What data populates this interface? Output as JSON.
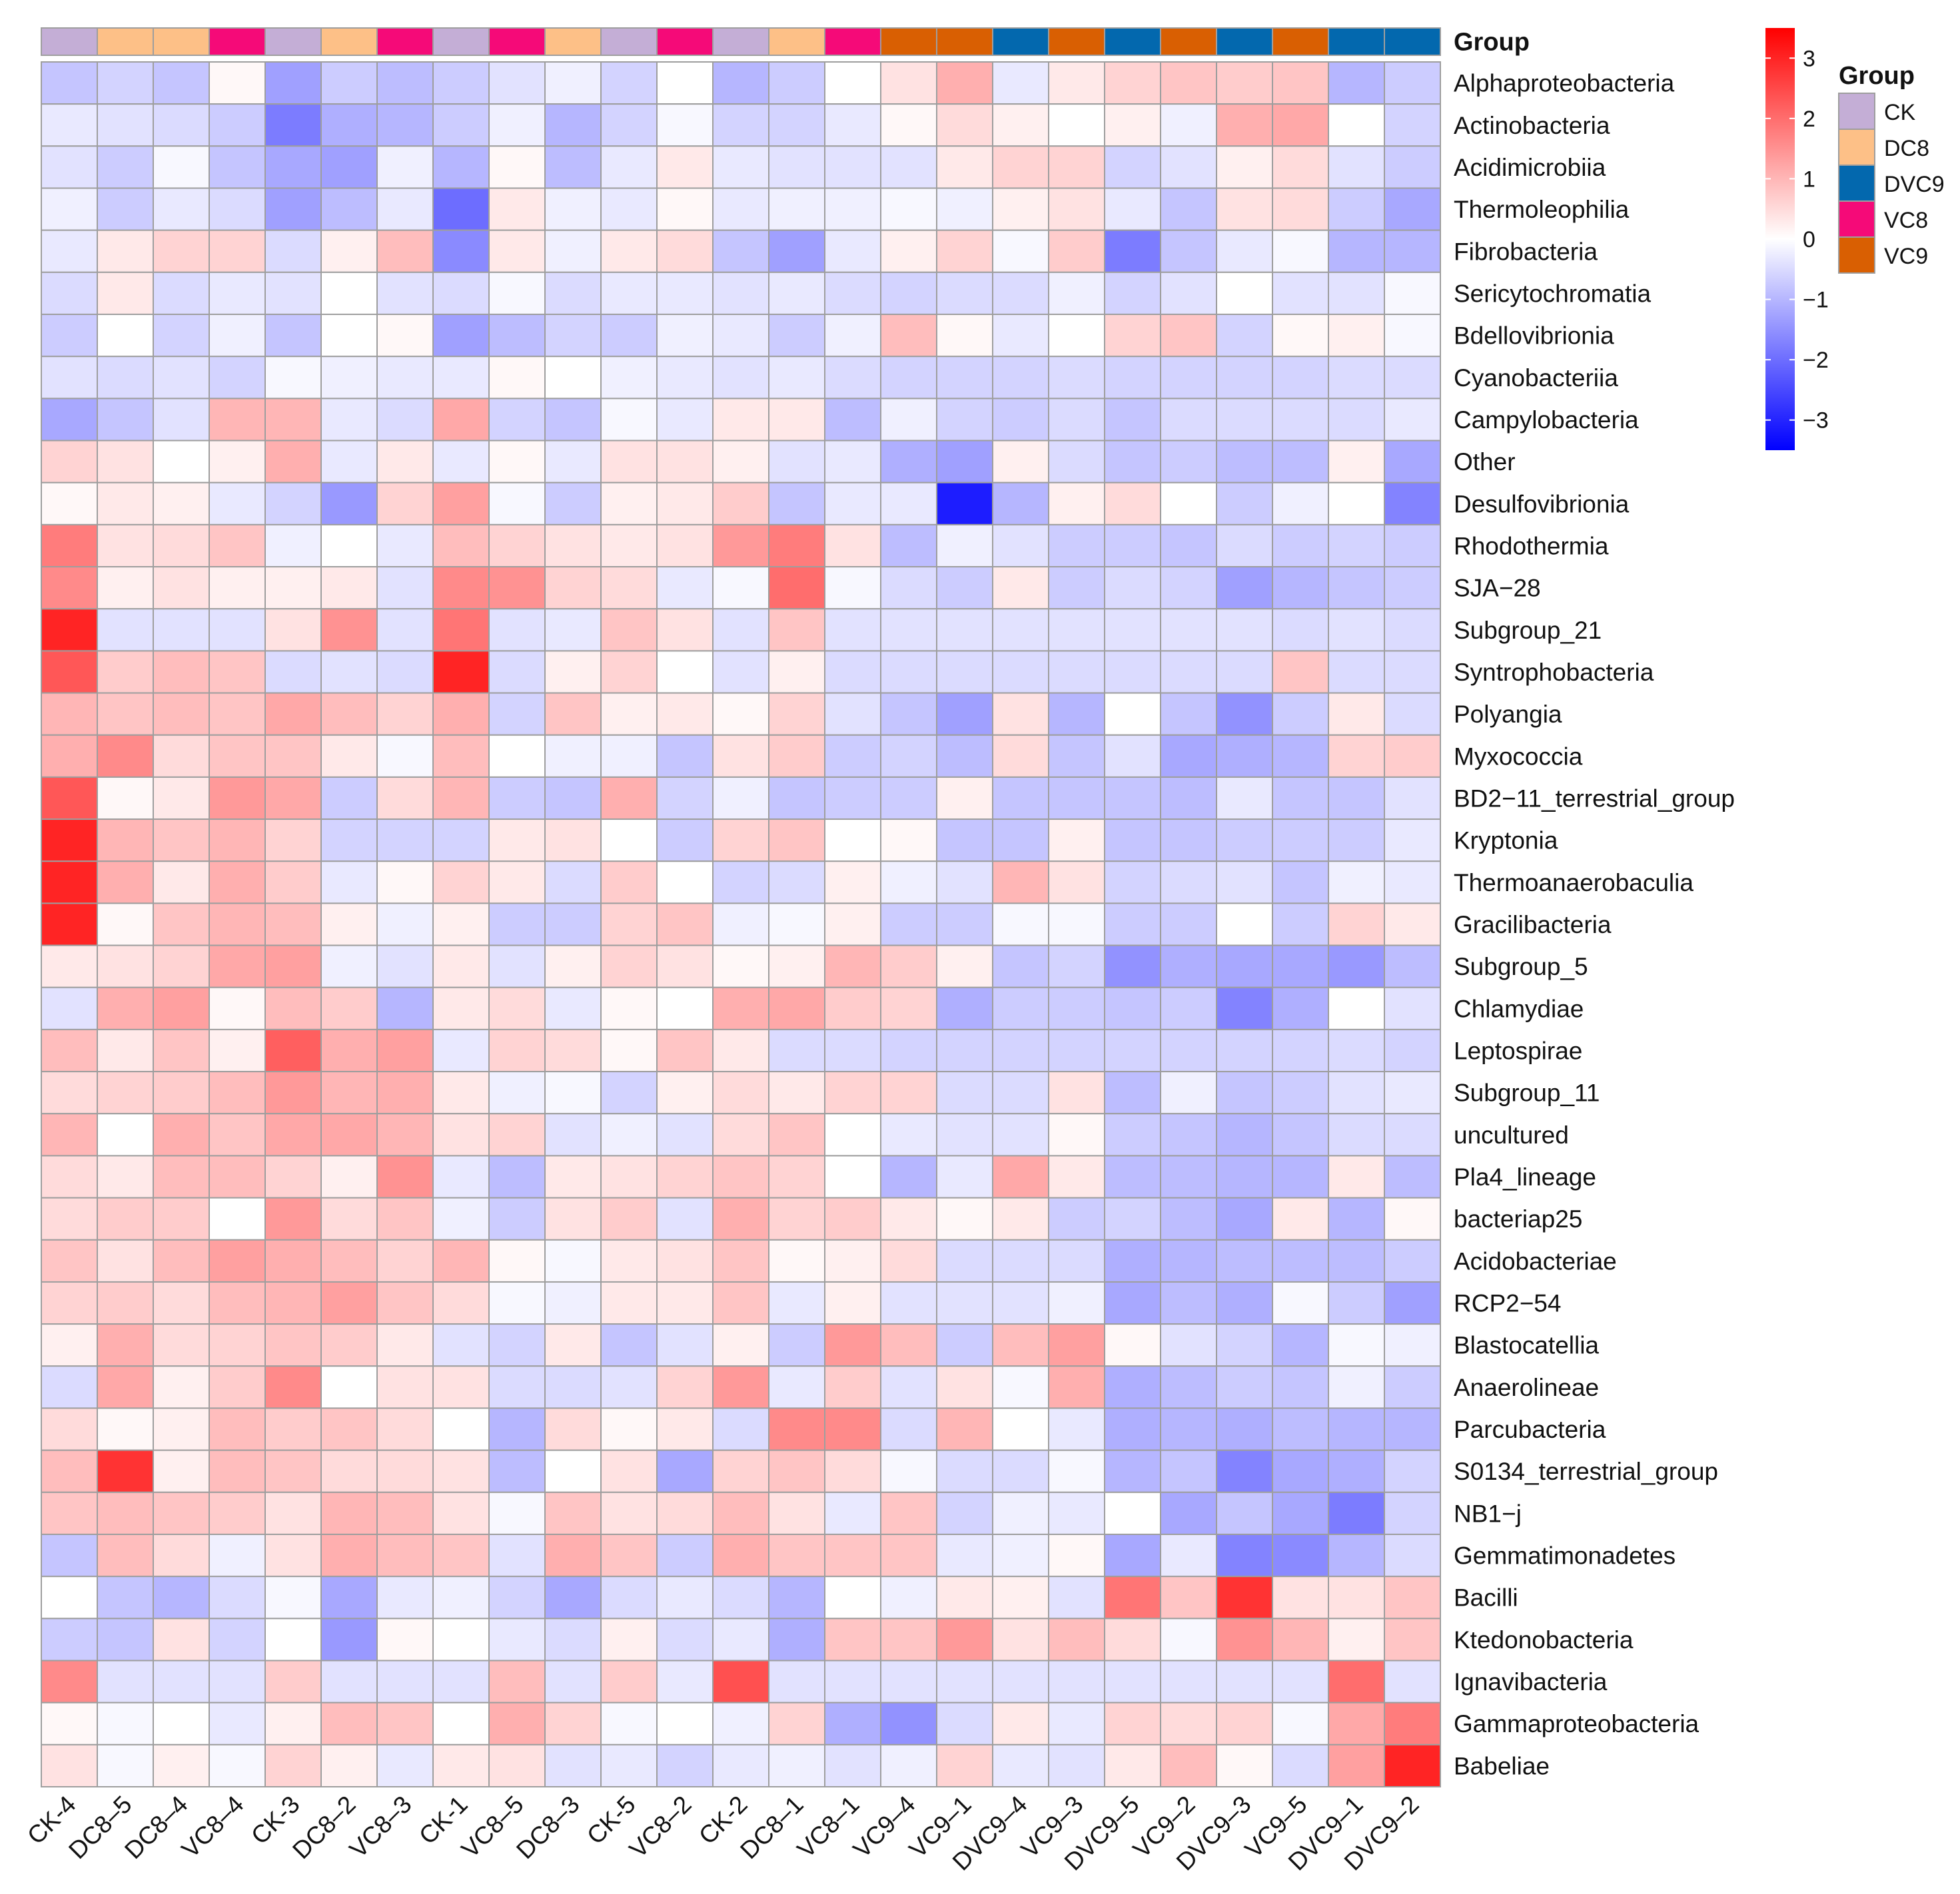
{
  "chart_data": {
    "type": "heatmap",
    "title": "",
    "annotation_title": "Group",
    "columns": [
      "CK-4",
      "DC8-5",
      "DC8-4",
      "VC8-4",
      "CK-3",
      "DC8-2",
      "VC8-3",
      "CK-1",
      "VC8-5",
      "DC8-3",
      "CK-5",
      "VC8-2",
      "CK-2",
      "DC8-1",
      "VC8-1",
      "VC9-4",
      "VC9-1",
      "DVC9-4",
      "VC9-3",
      "DVC9-5",
      "VC9-2",
      "DVC9-3",
      "VC9-5",
      "DVC9-1",
      "DVC9-2"
    ],
    "column_labels": [
      "CK-4",
      "DC8–5",
      "DC8–4",
      "VC8–4",
      "CK-3",
      "DC8–2",
      "VC8–3",
      "CK-1",
      "VC8–5",
      "DC8–3",
      "CK-5",
      "VC8–2",
      "CK-2",
      "DC8–1",
      "VC8–1",
      "VC9–4",
      "VC9–1",
      "DVC9–4",
      "VC9–3",
      "DVC9–5",
      "VC9–2",
      "DVC9–3",
      "VC9–5",
      "DVC9–1",
      "DVC9–2"
    ],
    "column_groups": [
      "CK",
      "DC8",
      "DC8",
      "VC8",
      "CK",
      "DC8",
      "VC8",
      "CK",
      "VC8",
      "DC8",
      "CK",
      "VC8",
      "CK",
      "DC8",
      "VC8",
      "VC9",
      "VC9",
      "DVC9",
      "VC9",
      "DVC9",
      "VC9",
      "DVC9",
      "VC9",
      "DVC9",
      "DVC9"
    ],
    "rows": [
      "Alphaproteobacteria",
      "Actinobacteria",
      "Acidimicrobiia",
      "Thermoleophilia",
      "Fibrobacteria",
      "Sericytochromatia",
      "Bdellovibrionia",
      "Cyanobacteriia",
      "Campylobacteria",
      "Other",
      "Desulfovibrionia",
      "Rhodothermia",
      "SJA−28",
      "Subgroup_21",
      "Syntrophobacteria",
      "Polyangia",
      "Myxococcia",
      "BD2−11_terrestrial_group",
      "Kryptonia",
      "Thermoanaerobaculia",
      "Gracilibacteria",
      "Subgroup_5",
      "Chlamydiae",
      "Leptospirae",
      "Subgroup_11",
      "uncultured",
      "Pla4_lineage",
      "bacteriap25",
      "Acidobacteriae",
      "RCP2−54",
      "Blastocatellia",
      "Anaerolineae",
      "Parcubacteria",
      "S0134_terrestrial_group",
      "NB1−j",
      "Gemmatimonadetes",
      "Bacilli",
      "Ktedonobacteria",
      "Ignavibacteria",
      "Gammaproteobacteria",
      "Babeliae"
    ],
    "values": [
      [
        -0.8,
        -0.6,
        -0.8,
        0.1,
        -1.3,
        -0.7,
        -0.9,
        -0.7,
        -0.4,
        -0.2,
        -0.6,
        0.0,
        -1.0,
        -0.7,
        0.0,
        0.4,
        1.1,
        -0.3,
        0.3,
        0.6,
        0.8,
        0.7,
        0.8,
        -1.0,
        -0.7
      ],
      [
        -0.3,
        -0.4,
        -0.5,
        -0.7,
        -1.8,
        -1.1,
        -1.0,
        -0.7,
        -0.2,
        -1.0,
        -0.6,
        -0.1,
        -0.6,
        -0.6,
        -0.3,
        0.1,
        0.5,
        0.2,
        0.0,
        0.2,
        -0.2,
        1.1,
        1.2,
        0.0,
        -0.6
      ],
      [
        -0.4,
        -0.7,
        -0.1,
        -0.8,
        -1.2,
        -1.3,
        -0.2,
        -1.0,
        0.1,
        -0.9,
        -0.3,
        0.3,
        -0.3,
        -0.4,
        -0.4,
        -0.4,
        0.3,
        0.6,
        0.6,
        -0.6,
        -0.4,
        0.2,
        0.5,
        -0.4,
        -0.7
      ],
      [
        -0.2,
        -0.7,
        -0.3,
        -0.5,
        -1.3,
        -0.9,
        -0.3,
        -2.0,
        0.3,
        -0.2,
        -0.3,
        0.1,
        -0.3,
        -0.2,
        -0.2,
        -0.1,
        -0.2,
        0.2,
        0.4,
        -0.3,
        -0.8,
        0.4,
        0.5,
        -0.7,
        -1.2
      ],
      [
        -0.3,
        0.3,
        0.6,
        0.6,
        -0.5,
        0.2,
        0.9,
        -1.6,
        0.3,
        -0.2,
        0.3,
        0.5,
        -0.8,
        -1.3,
        -0.3,
        0.2,
        0.6,
        -0.1,
        0.7,
        -1.8,
        -0.8,
        -0.3,
        -0.1,
        -1.0,
        -1.0
      ],
      [
        -0.5,
        0.3,
        -0.5,
        -0.3,
        -0.4,
        0.0,
        -0.4,
        -0.5,
        -0.1,
        -0.5,
        -0.3,
        -0.3,
        -0.4,
        -0.3,
        -0.5,
        -0.6,
        -0.5,
        -0.5,
        -0.2,
        -0.6,
        -0.4,
        0.0,
        -0.4,
        -0.4,
        -0.1
      ],
      [
        -0.7,
        0.0,
        -0.6,
        -0.2,
        -0.8,
        0.0,
        0.1,
        -1.3,
        -0.9,
        -0.6,
        -0.7,
        -0.2,
        -0.3,
        -0.7,
        -0.2,
        0.9,
        0.1,
        -0.3,
        0.0,
        0.6,
        0.8,
        -0.6,
        0.1,
        0.2,
        -0.1
      ],
      [
        -0.4,
        -0.5,
        -0.4,
        -0.6,
        -0.1,
        -0.2,
        -0.3,
        -0.3,
        0.1,
        0.0,
        -0.2,
        -0.3,
        -0.4,
        -0.3,
        -0.5,
        -0.6,
        -0.6,
        -0.6,
        -0.5,
        -0.6,
        -0.6,
        -0.6,
        -0.6,
        -0.5,
        -0.5
      ],
      [
        -1.2,
        -0.8,
        -0.4,
        1.0,
        1.0,
        -0.3,
        -0.5,
        1.2,
        -0.6,
        -0.8,
        -0.1,
        -0.3,
        0.3,
        0.3,
        -0.9,
        -0.2,
        -0.6,
        -0.7,
        -0.5,
        -0.8,
        -0.5,
        -0.5,
        -0.5,
        -0.5,
        -0.3
      ],
      [
        0.6,
        0.4,
        0.0,
        0.2,
        1.1,
        -0.3,
        0.3,
        -0.3,
        0.1,
        -0.3,
        0.4,
        0.4,
        0.2,
        -0.4,
        -0.3,
        -1.1,
        -1.3,
        0.2,
        -0.5,
        -0.8,
        -0.7,
        -0.9,
        -0.9,
        0.2,
        -1.2
      ],
      [
        0.1,
        0.3,
        0.2,
        -0.3,
        -0.6,
        -1.4,
        0.6,
        1.3,
        -0.1,
        -0.7,
        0.2,
        0.3,
        0.7,
        -0.8,
        -0.3,
        -0.3,
        -3.1,
        -1.0,
        0.2,
        0.5,
        0.0,
        -0.7,
        -0.2,
        0.0,
        -1.7
      ],
      [
        1.8,
        0.4,
        0.5,
        0.8,
        -0.2,
        0.0,
        -0.3,
        0.9,
        0.6,
        0.4,
        0.3,
        0.4,
        1.4,
        1.8,
        0.4,
        -0.9,
        -0.2,
        -0.4,
        -0.7,
        -0.7,
        -0.8,
        -0.5,
        -0.7,
        -0.6,
        -0.7
      ],
      [
        1.6,
        0.2,
        0.4,
        0.2,
        0.2,
        0.3,
        -0.4,
        1.6,
        1.5,
        0.6,
        0.5,
        -0.3,
        -0.1,
        2.0,
        -0.1,
        -0.5,
        -0.7,
        0.3,
        -0.7,
        -0.5,
        -0.6,
        -1.3,
        -1.0,
        -0.8,
        -0.7
      ],
      [
        3.0,
        -0.4,
        -0.4,
        -0.4,
        0.4,
        1.5,
        -0.4,
        1.9,
        -0.4,
        -0.3,
        0.8,
        0.4,
        -0.4,
        0.8,
        -0.4,
        -0.4,
        -0.4,
        -0.4,
        -0.4,
        -0.4,
        -0.4,
        -0.4,
        -0.5,
        -0.4,
        -0.5
      ],
      [
        2.3,
        0.7,
        0.9,
        0.8,
        -0.5,
        -0.4,
        -0.5,
        3.0,
        -0.5,
        0.2,
        0.6,
        0.0,
        -0.4,
        0.2,
        -0.5,
        -0.5,
        -0.5,
        -0.5,
        -0.5,
        -0.5,
        -0.5,
        -0.5,
        0.8,
        -0.5,
        -0.5
      ],
      [
        1.0,
        0.8,
        0.9,
        0.8,
        1.2,
        0.9,
        0.6,
        1.1,
        -0.6,
        0.8,
        0.2,
        0.3,
        0.1,
        0.6,
        -0.4,
        -0.8,
        -1.3,
        0.4,
        -1.0,
        0.0,
        -0.8,
        -1.5,
        -0.7,
        0.3,
        -0.5
      ],
      [
        1.1,
        1.6,
        0.5,
        0.8,
        0.8,
        0.3,
        -0.1,
        0.9,
        0.0,
        -0.2,
        -0.2,
        -0.8,
        0.4,
        0.7,
        -0.7,
        -0.6,
        -0.9,
        0.5,
        -0.8,
        -0.4,
        -1.2,
        -1.1,
        -1.0,
        0.6,
        0.7
      ],
      [
        2.3,
        0.1,
        0.3,
        1.4,
        1.2,
        -0.7,
        0.5,
        1.0,
        -0.7,
        -0.8,
        1.1,
        -0.6,
        -0.2,
        -0.8,
        -0.7,
        -0.7,
        0.2,
        -0.8,
        -0.8,
        -0.8,
        -0.9,
        -0.3,
        -0.8,
        -0.8,
        -0.4
      ],
      [
        3.0,
        1.0,
        0.8,
        1.0,
        0.6,
        -0.6,
        -0.6,
        -0.6,
        0.3,
        0.4,
        0.0,
        -0.7,
        0.6,
        0.8,
        0.0,
        0.1,
        -0.8,
        -0.8,
        0.2,
        -0.8,
        -0.8,
        -0.7,
        -0.7,
        -0.7,
        -0.3
      ],
      [
        3.0,
        1.1,
        0.3,
        1.1,
        0.7,
        -0.3,
        0.1,
        0.6,
        0.3,
        -0.5,
        0.7,
        0.0,
        -0.6,
        -0.5,
        0.2,
        -0.2,
        -0.4,
        1.0,
        0.4,
        -0.6,
        -0.5,
        -0.4,
        -0.8,
        -0.2,
        -0.3
      ],
      [
        3.0,
        0.1,
        0.8,
        1.0,
        0.9,
        0.2,
        -0.2,
        0.2,
        -0.7,
        -0.7,
        0.6,
        0.8,
        -0.2,
        -0.1,
        0.2,
        -0.7,
        -0.7,
        -0.1,
        -0.1,
        -0.7,
        -0.7,
        0.0,
        -0.7,
        0.6,
        0.3
      ],
      [
        0.3,
        0.4,
        0.6,
        1.2,
        1.3,
        -0.2,
        -0.4,
        0.3,
        -0.4,
        0.2,
        0.6,
        0.4,
        0.1,
        0.2,
        1.0,
        0.7,
        0.2,
        -0.8,
        -0.6,
        -1.5,
        -1.1,
        -1.2,
        -1.2,
        -1.4,
        -0.9
      ],
      [
        -0.4,
        1.1,
        1.3,
        0.1,
        0.9,
        0.7,
        -1.0,
        0.3,
        0.5,
        -0.3,
        0.1,
        0.0,
        1.1,
        1.2,
        0.7,
        0.6,
        -1.1,
        -0.7,
        -0.7,
        -0.8,
        -0.7,
        -1.7,
        -1.1,
        0.0,
        -0.4
      ],
      [
        0.9,
        0.3,
        0.8,
        0.2,
        2.2,
        1.1,
        1.3,
        -0.3,
        0.6,
        0.5,
        0.1,
        0.8,
        0.3,
        -0.5,
        -0.5,
        -0.6,
        -0.6,
        -0.6,
        -0.6,
        -0.6,
        -0.6,
        -0.6,
        -0.6,
        -0.5,
        -0.6
      ],
      [
        0.5,
        0.6,
        0.7,
        0.9,
        1.4,
        1.0,
        1.1,
        0.3,
        -0.2,
        -0.1,
        -0.6,
        0.2,
        0.5,
        0.3,
        0.6,
        0.6,
        -0.5,
        -0.5,
        0.4,
        -0.9,
        -0.2,
        -0.8,
        -0.7,
        -0.4,
        -0.3
      ],
      [
        1.0,
        0.0,
        1.1,
        0.8,
        1.2,
        1.2,
        1.0,
        0.4,
        0.6,
        -0.4,
        -0.2,
        -0.4,
        0.5,
        0.8,
        0.0,
        -0.3,
        -0.4,
        -0.4,
        0.1,
        -0.7,
        -0.8,
        -1.0,
        -0.8,
        -0.5,
        -0.5
      ],
      [
        0.5,
        0.3,
        0.9,
        0.9,
        0.6,
        0.2,
        1.5,
        -0.3,
        -0.9,
        0.3,
        0.4,
        0.6,
        0.8,
        0.6,
        0.0,
        -1.0,
        -0.3,
        1.2,
        0.3,
        -0.9,
        -0.9,
        -1.0,
        -1.0,
        0.3,
        -0.9
      ],
      [
        0.5,
        0.7,
        0.7,
        0.0,
        1.4,
        0.5,
        0.8,
        -0.2,
        -0.7,
        0.4,
        0.7,
        -0.4,
        1.1,
        0.6,
        0.7,
        0.3,
        0.1,
        0.3,
        -0.7,
        -0.6,
        -0.9,
        -1.2,
        0.3,
        -1.0,
        0.1
      ],
      [
        0.8,
        0.4,
        0.9,
        1.3,
        1.1,
        0.9,
        0.6,
        1.0,
        0.1,
        -0.1,
        0.3,
        0.4,
        0.8,
        0.1,
        0.2,
        0.5,
        -0.5,
        -0.5,
        -0.5,
        -1.1,
        -1.0,
        -0.9,
        -0.9,
        -0.9,
        -0.7
      ],
      [
        0.6,
        0.7,
        0.5,
        0.9,
        1.0,
        1.3,
        0.8,
        0.5,
        -0.1,
        -0.2,
        0.3,
        0.3,
        0.8,
        -0.3,
        0.2,
        -0.4,
        -0.4,
        -0.4,
        -0.2,
        -1.2,
        -0.9,
        -1.1,
        -0.1,
        -0.7,
        -1.3
      ],
      [
        0.2,
        1.1,
        0.5,
        0.6,
        0.8,
        0.7,
        0.3,
        -0.4,
        -0.6,
        0.3,
        -0.8,
        -0.4,
        0.2,
        -0.7,
        1.4,
        0.9,
        -0.7,
        0.9,
        1.3,
        0.1,
        -0.4,
        -0.6,
        -1.0,
        -0.1,
        -0.2
      ],
      [
        -0.5,
        1.2,
        0.2,
        0.7,
        1.6,
        0.0,
        0.4,
        0.4,
        -0.5,
        -0.5,
        -0.4,
        0.6,
        1.4,
        -0.3,
        0.7,
        -0.4,
        0.4,
        -0.1,
        1.1,
        -1.1,
        -0.9,
        -0.7,
        -0.8,
        -0.2,
        -0.7
      ],
      [
        0.5,
        0.1,
        0.2,
        0.9,
        0.7,
        0.8,
        0.5,
        0.0,
        -1.0,
        0.5,
        0.1,
        0.3,
        -0.5,
        1.6,
        1.6,
        -0.5,
        1.0,
        0.0,
        -0.3,
        -1.1,
        -1.0,
        -1.1,
        -0.9,
        -1.0,
        -1.0
      ],
      [
        0.9,
        2.8,
        0.2,
        0.9,
        0.8,
        0.5,
        0.5,
        0.4,
        -0.9,
        0.0,
        0.4,
        -1.2,
        0.6,
        0.8,
        0.5,
        -0.1,
        -0.5,
        -0.5,
        -0.1,
        -1.0,
        -0.8,
        -1.7,
        -1.2,
        -1.1,
        -0.6
      ],
      [
        0.8,
        0.9,
        0.8,
        0.7,
        0.4,
        1.0,
        0.9,
        0.4,
        -0.1,
        0.8,
        0.4,
        0.5,
        0.9,
        0.4,
        -0.3,
        0.8,
        -0.6,
        -0.2,
        -0.3,
        0.0,
        -1.2,
        -0.8,
        -1.2,
        -1.8,
        -0.6
      ],
      [
        -0.8,
        0.9,
        0.5,
        -0.2,
        0.4,
        1.1,
        0.9,
        0.8,
        -0.4,
        1.1,
        0.8,
        -0.7,
        1.1,
        0.8,
        0.8,
        0.8,
        -0.3,
        -0.2,
        0.1,
        -1.2,
        -0.3,
        -1.7,
        -1.6,
        -1.0,
        -0.5
      ],
      [
        0.0,
        -0.8,
        -1.0,
        -0.5,
        -0.1,
        -1.2,
        -0.3,
        -0.2,
        -0.6,
        -1.2,
        -0.5,
        -0.3,
        -0.5,
        -1.0,
        0.0,
        -0.2,
        0.3,
        0.2,
        -0.4,
        1.9,
        0.8,
        2.8,
        0.4,
        0.4,
        0.8
      ],
      [
        -0.7,
        -0.8,
        0.4,
        -0.6,
        0.0,
        -1.4,
        0.1,
        0.0,
        -0.3,
        -0.5,
        0.2,
        -0.5,
        -0.3,
        -1.1,
        0.8,
        0.8,
        1.4,
        0.4,
        0.9,
        0.5,
        -0.1,
        1.5,
        1.0,
        0.2,
        0.8
      ],
      [
        1.6,
        -0.4,
        -0.4,
        -0.4,
        0.7,
        -0.4,
        -0.4,
        -0.4,
        0.9,
        -0.4,
        0.7,
        -0.3,
        2.4,
        -0.4,
        -0.4,
        -0.4,
        -0.4,
        -0.4,
        -0.4,
        -0.4,
        -0.4,
        -0.4,
        -0.4,
        2.0,
        -0.4
      ],
      [
        0.1,
        -0.1,
        0.0,
        -0.3,
        0.2,
        0.9,
        0.8,
        0.0,
        1.1,
        0.6,
        -0.1,
        0.0,
        -0.2,
        0.6,
        -1.1,
        -1.5,
        -0.5,
        0.3,
        -0.3,
        0.6,
        0.5,
        0.6,
        -0.1,
        1.2,
        1.8
      ],
      [
        0.4,
        -0.1,
        0.2,
        -0.1,
        0.6,
        0.2,
        -0.3,
        0.3,
        0.4,
        -0.4,
        -0.3,
        -0.6,
        -0.3,
        -0.2,
        -0.4,
        -0.2,
        0.6,
        -0.3,
        -0.4,
        0.3,
        0.9,
        0.1,
        -0.5,
        1.3,
        3.0
      ]
    ],
    "color_scale": {
      "min": -3.5,
      "max": 3.5,
      "low": "#0000FF",
      "mid": "#FFFFFF",
      "high": "#FF0000",
      "ticks": [
        3,
        2,
        1,
        0,
        -1,
        -2,
        -3
      ],
      "tick_labels": [
        "3",
        "2",
        "1",
        "0",
        "−1",
        "−2",
        "−3"
      ]
    },
    "legend": {
      "title": "Group",
      "entries": [
        {
          "label": "CK",
          "color": "#C4AED6"
        },
        {
          "label": "DC8",
          "color": "#FDC087"
        },
        {
          "label": "DVC9",
          "color": "#0368AE"
        },
        {
          "label": "VC8",
          "color": "#F50A78"
        },
        {
          "label": "VC9",
          "color": "#D95F02"
        }
      ]
    },
    "cell_border_color": "#9E9E9E"
  }
}
